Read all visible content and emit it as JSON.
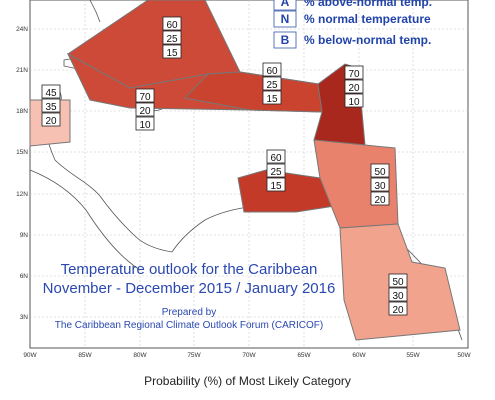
{
  "legend": {
    "items": [
      {
        "key": "A",
        "text": "% above-normal temp."
      },
      {
        "key": "N",
        "text": "% normal temperature"
      },
      {
        "key": "B",
        "text": "% below-normal temp."
      }
    ]
  },
  "axes": {
    "lat_ticks": [
      "24N",
      "21N",
      "18N",
      "15N",
      "12N",
      "9N",
      "6N",
      "3N"
    ],
    "lon_ticks": [
      "90W",
      "85W",
      "80W",
      "75W",
      "70W",
      "65W",
      "60W",
      "55W",
      "50W"
    ]
  },
  "title": {
    "line1": "Temperature outlook for the Caribbean",
    "line2": "November - December 2015 / January 2016",
    "prepared_by": "Prepared by",
    "forum": "The Caribbean Regional Climate Outlook Forum (CARICOF)"
  },
  "footer": "Probability (%) of Most Likely Category",
  "regions": [
    {
      "name": "bahamas",
      "values": [
        "60",
        "25",
        "15"
      ]
    },
    {
      "name": "belize",
      "values": [
        "45",
        "35",
        "20"
      ]
    },
    {
      "name": "jamaica-cuba",
      "values": [
        "70",
        "20",
        "10"
      ]
    },
    {
      "name": "hispaniola",
      "values": [
        "60",
        "25",
        "15"
      ]
    },
    {
      "name": "leeward-islands",
      "values": [
        "70",
        "20",
        "10"
      ]
    },
    {
      "name": "abc-islands",
      "values": [
        "60",
        "25",
        "15"
      ]
    },
    {
      "name": "windward-islands",
      "values": [
        "50",
        "30",
        "20"
      ]
    },
    {
      "name": "guianas",
      "values": [
        "50",
        "30",
        "20"
      ]
    }
  ],
  "colors": {
    "dark_red": "#a9281e",
    "red": "#cc4a37",
    "salmon": "#e9826c",
    "light_salmon": "#f2a38e",
    "pale": "#f6c1b3",
    "text_blue": "#2244aa"
  }
}
